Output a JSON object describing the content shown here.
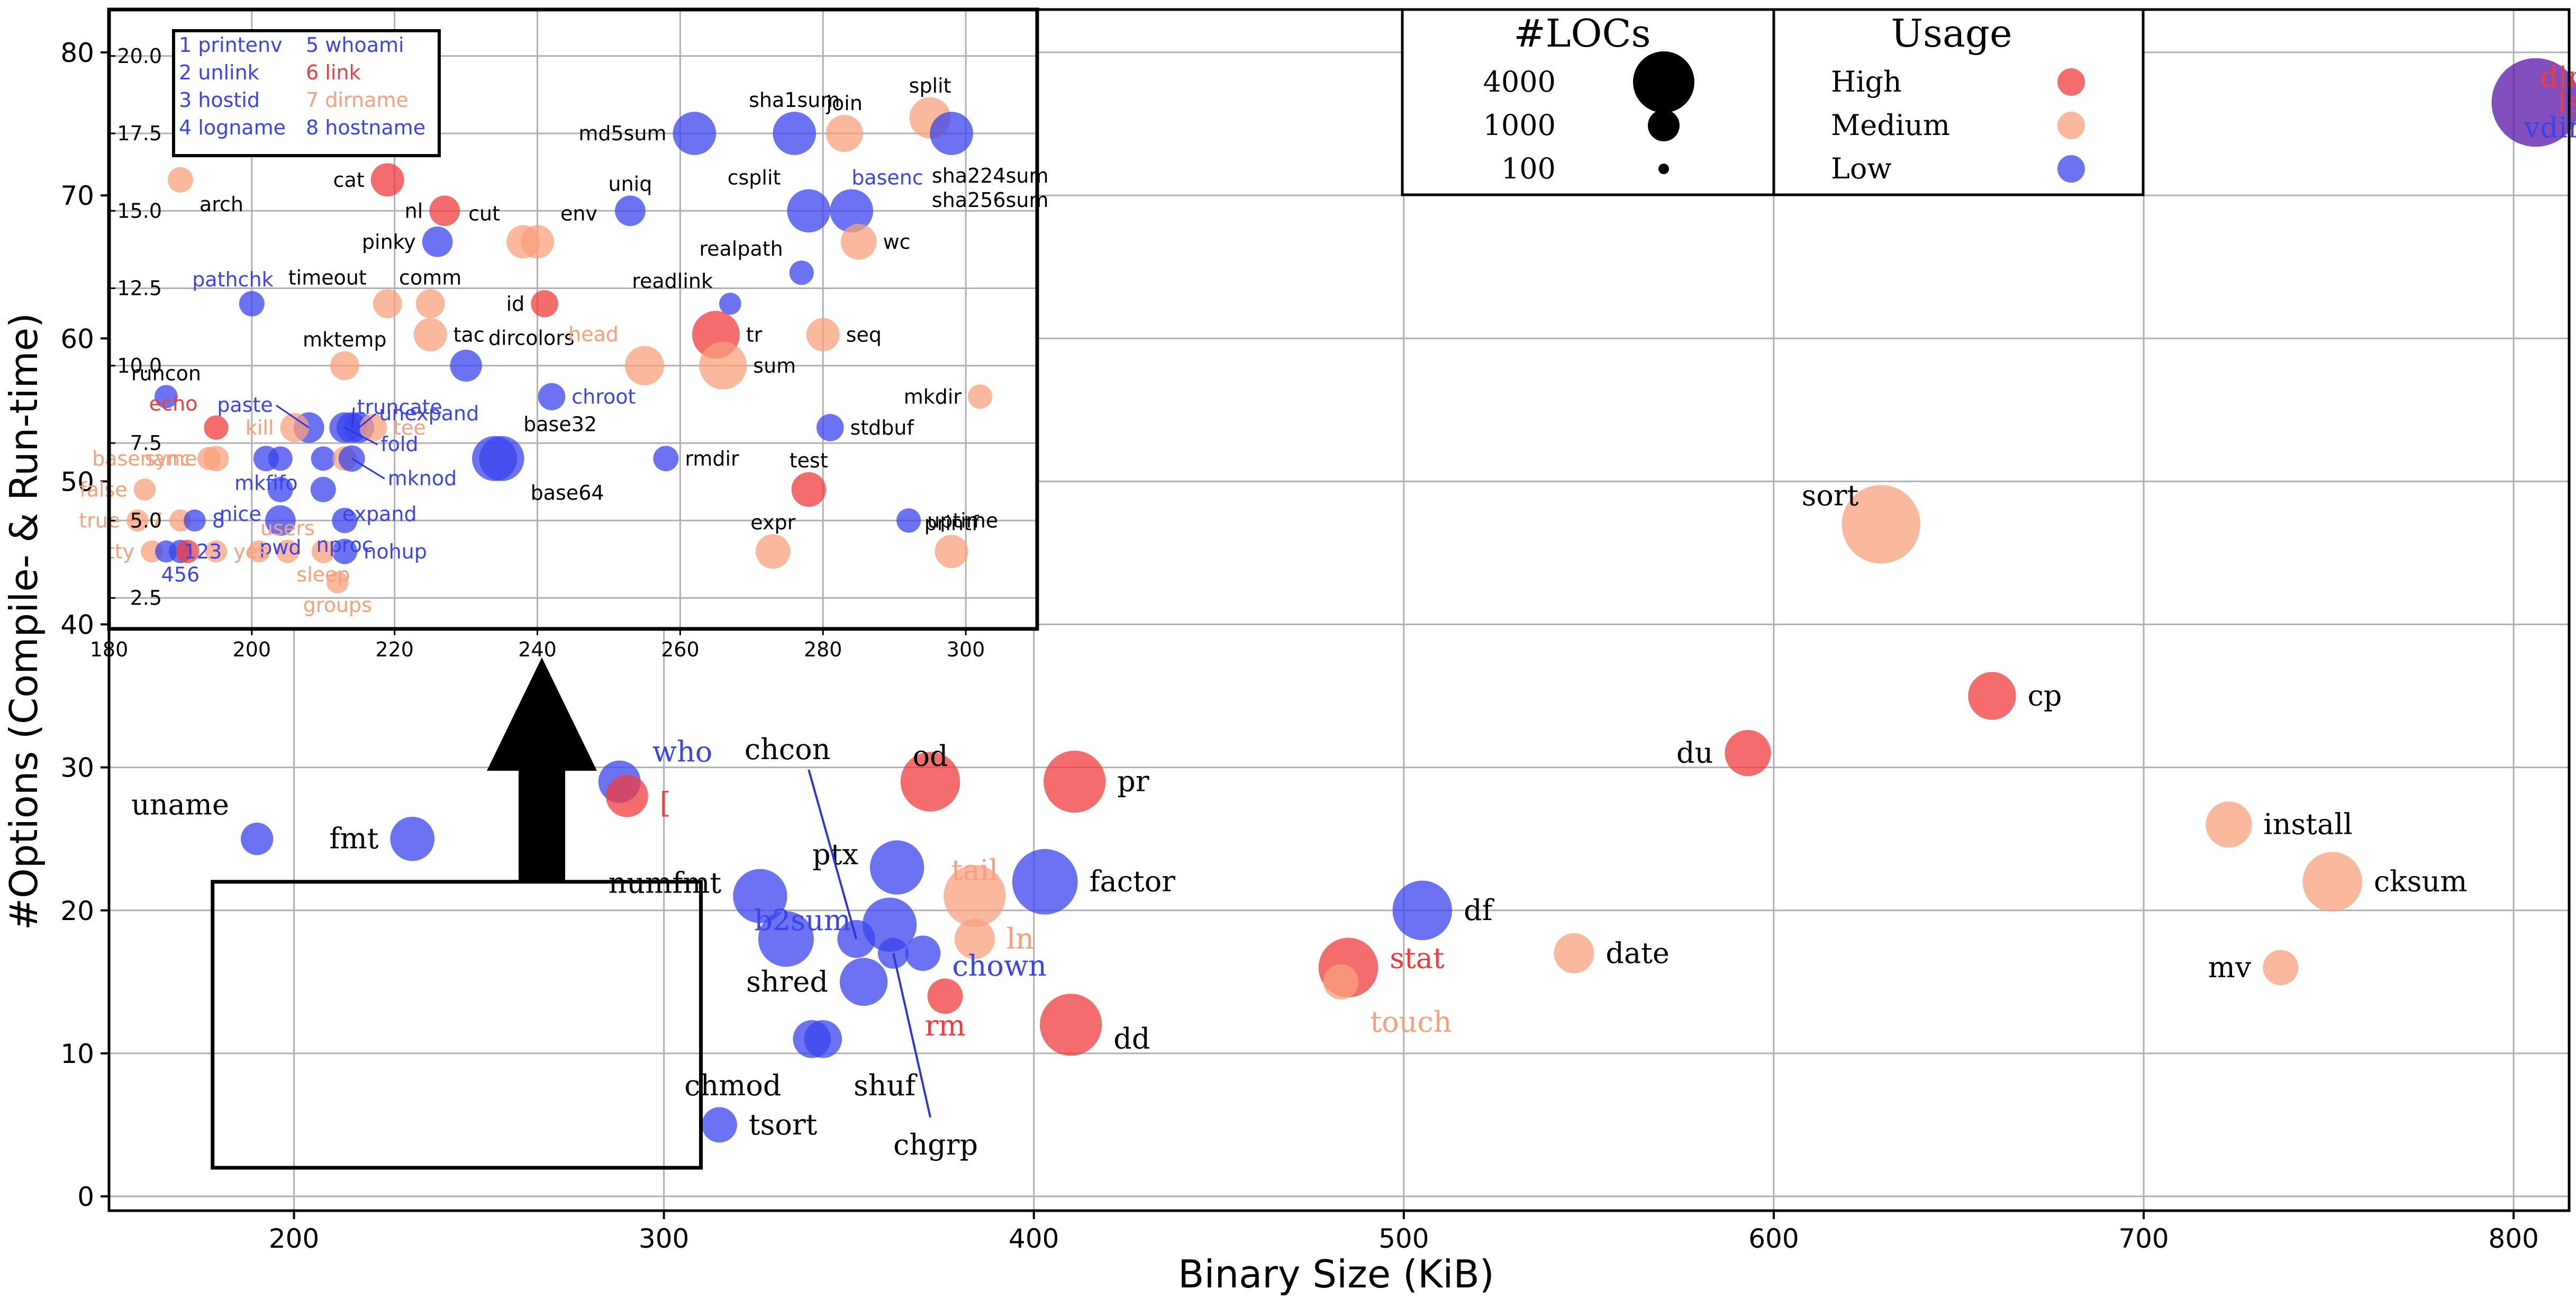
{
  "colors": {
    "High": "#f03c3c",
    "Medium": "#f8a07c",
    "Low": "#3a44ee",
    "Mixed": "#5a14a8",
    "grid": "#b0b0b0"
  },
  "chart_data": {
    "type": "scatter",
    "xlabel": "Binary Size (KiB)",
    "ylabel": "#Options (Compile- & Run-time)",
    "xlim": [
      150,
      815
    ],
    "ylim": [
      -1,
      83
    ],
    "xticks": [
      200,
      300,
      400,
      500,
      600,
      700,
      800
    ],
    "yticks": [
      0,
      10,
      20,
      30,
      40,
      50,
      60,
      70,
      80
    ],
    "grid": true,
    "legend_loc": "upper-center",
    "legend": {
      "size_title": "#LOCs",
      "sizes": [
        {
          "label": "4000",
          "loc": 4000
        },
        {
          "label": "1000",
          "loc": 1000
        },
        {
          "label": "100",
          "loc": 100
        }
      ],
      "usage_title": "Usage",
      "usage": [
        {
          "label": "High",
          "usage": "High"
        },
        {
          "label": "Medium",
          "usage": "Medium"
        },
        {
          "label": "Low",
          "usage": "Low"
        }
      ]
    },
    "points": [
      {
        "name": "dir\nls\nvdir",
        "x": 806,
        "y": 76.5,
        "loc": 4800,
        "usage": "Mixed",
        "label_colors": [
          "High",
          "High",
          "Low"
        ]
      },
      {
        "name": "sort",
        "x": 629,
        "y": 47,
        "loc": 3600,
        "usage": "Medium"
      },
      {
        "name": "cp",
        "x": 659,
        "y": 35,
        "loc": 1000,
        "usage": "High"
      },
      {
        "name": "du",
        "x": 593,
        "y": 31,
        "loc": 900,
        "usage": "High"
      },
      {
        "name": "install",
        "x": 723,
        "y": 26,
        "loc": 900,
        "usage": "Medium"
      },
      {
        "name": "cksum",
        "x": 751,
        "y": 22,
        "loc": 1800,
        "usage": "Medium"
      },
      {
        "name": "mv",
        "x": 737,
        "y": 16,
        "loc": 400,
        "usage": "Medium"
      },
      {
        "name": "date",
        "x": 546,
        "y": 17,
        "loc": 600,
        "usage": "Medium"
      },
      {
        "name": "df",
        "x": 505,
        "y": 20,
        "loc": 1800,
        "usage": "Low"
      },
      {
        "name": "stat",
        "x": 485,
        "y": 16,
        "loc": 1800,
        "usage": "High",
        "label_colored": true
      },
      {
        "name": "touch",
        "x": 483,
        "y": 15,
        "loc": 400,
        "usage": "Medium",
        "label_colored": true
      },
      {
        "name": "pr",
        "x": 411,
        "y": 29,
        "loc": 2000,
        "usage": "High"
      },
      {
        "name": "factor",
        "x": 403,
        "y": 22,
        "loc": 2300,
        "usage": "Low"
      },
      {
        "name": "dd",
        "x": 410,
        "y": 12,
        "loc": 2000,
        "usage": "High"
      },
      {
        "name": "od",
        "x": 372,
        "y": 29,
        "loc": 1800,
        "usage": "High"
      },
      {
        "name": "tail",
        "x": 384,
        "y": 21,
        "loc": 2000,
        "usage": "Medium",
        "label_colored": true
      },
      {
        "name": "ln",
        "x": 384,
        "y": 18,
        "loc": 600,
        "usage": "Medium",
        "label_colored": true
      },
      {
        "name": "ptx",
        "x": 363,
        "y": 23,
        "loc": 1400,
        "usage": "Low"
      },
      {
        "name": "b2sum",
        "x": 361,
        "y": 19,
        "loc": 1400,
        "usage": "Low",
        "label_colored": true
      },
      {
        "name": "chown",
        "x": 370,
        "y": 17,
        "loc": 400,
        "usage": "Low",
        "label_colored": true
      },
      {
        "name": "rm",
        "x": 376,
        "y": 14,
        "loc": 400,
        "usage": "High",
        "label_colored": true
      },
      {
        "name": "chcon",
        "x": 352,
        "y": 18,
        "loc": 500,
        "usage": "Low"
      },
      {
        "name": "chgrp",
        "x": 362,
        "y": 17,
        "loc": 250,
        "usage": "Low"
      },
      {
        "name": "shred",
        "x": 354,
        "y": 15,
        "loc": 1000,
        "usage": "Low"
      },
      {
        "name": "chmod",
        "x": 340,
        "y": 11,
        "loc": 500,
        "usage": "Low"
      },
      {
        "name": "shuf",
        "x": 343,
        "y": 11,
        "loc": 500,
        "usage": "Low"
      },
      {
        "name": "numfmt",
        "x": 326,
        "y": 21,
        "loc": 1400,
        "usage": "Low"
      },
      {
        "name": "",
        "x": 333,
        "y": 18,
        "loc": 1500,
        "usage": "Low"
      },
      {
        "name": "tsort",
        "x": 315,
        "y": 5,
        "loc": 400,
        "usage": "Low"
      },
      {
        "name": "who",
        "x": 288,
        "y": 29,
        "loc": 700,
        "usage": "Low",
        "label_colored": true
      },
      {
        "name": "[",
        "x": 290,
        "y": 28,
        "loc": 700,
        "usage": "High",
        "label_colored": true
      },
      {
        "name": "uname",
        "x": 190,
        "y": 25,
        "loc": 300,
        "usage": "Low"
      },
      {
        "name": "fmt",
        "x": 232,
        "y": 25,
        "loc": 800,
        "usage": "Low"
      }
    ],
    "zoom_region": {
      "x": [
        178,
        310
      ],
      "y": [
        2,
        22
      ]
    },
    "inset": {
      "xlim": [
        180,
        310
      ],
      "ylim": [
        1.5,
        21.5
      ],
      "xticks": [
        180,
        200,
        220,
        240,
        260,
        280,
        300
      ],
      "yticks": [
        "2.5",
        "5.0",
        "7.5",
        "10.0",
        "12.5",
        "15.0",
        "17.5",
        "20.0"
      ],
      "key": [
        {
          "n": "1",
          "name": "printenv",
          "usage": "Low"
        },
        {
          "n": "2",
          "name": "unlink",
          "usage": "Low"
        },
        {
          "n": "3",
          "name": "hostid",
          "usage": "Low"
        },
        {
          "n": "4",
          "name": "logname",
          "usage": "Low"
        },
        {
          "n": "5",
          "name": "whoami",
          "usage": "Low"
        },
        {
          "n": "6",
          "name": "link",
          "usage": "High"
        },
        {
          "n": "7",
          "name": "dirname",
          "usage": "Medium"
        },
        {
          "n": "8",
          "name": "hostname",
          "usage": "Low"
        }
      ],
      "points": [
        {
          "name": "split",
          "x": 295,
          "y": 18,
          "loc": 1600,
          "usage": "Medium"
        },
        {
          "name": "join",
          "x": 283,
          "y": 17.5,
          "loc": 1200,
          "usage": "Medium"
        },
        {
          "name": "md5sum",
          "x": 262,
          "y": 17.5,
          "loc": 1800,
          "usage": "Low"
        },
        {
          "name": "sha1sum",
          "x": 276,
          "y": 17.5,
          "loc": 1800,
          "usage": "Low"
        },
        {
          "name": "sha224sum\nsha256sum",
          "x": 298,
          "y": 17.5,
          "loc": 1800,
          "usage": "Low"
        },
        {
          "name": "csplit",
          "x": 278,
          "y": 15,
          "loc": 1800,
          "usage": "Low"
        },
        {
          "name": "basenc",
          "x": 284,
          "y": 15,
          "loc": 1800,
          "usage": "Low",
          "label_colored": true
        },
        {
          "name": "wc",
          "x": 285,
          "y": 14,
          "loc": 1100,
          "usage": "Medium"
        },
        {
          "name": "uniq",
          "x": 253,
          "y": 15,
          "loc": 700,
          "usage": "Low"
        },
        {
          "name": "arch",
          "x": 190,
          "y": 16,
          "loc": 400,
          "usage": "Medium"
        },
        {
          "name": "cat",
          "x": 219,
          "y": 16,
          "loc": 900,
          "usage": "High"
        },
        {
          "name": "nl",
          "x": 227,
          "y": 15,
          "loc": 700,
          "usage": "High"
        },
        {
          "name": "pinky",
          "x": 226,
          "y": 14,
          "loc": 700,
          "usage": "Low"
        },
        {
          "name": "cut",
          "x": 238,
          "y": 14,
          "loc": 900,
          "usage": "Medium"
        },
        {
          "name": "env",
          "x": 240,
          "y": 14,
          "loc": 900,
          "usage": "Medium"
        },
        {
          "name": "realpath",
          "x": 277,
          "y": 13,
          "loc": 350,
          "usage": "Low"
        },
        {
          "name": "pathchk",
          "x": 200,
          "y": 12,
          "loc": 400,
          "usage": "Low",
          "label_colored": true
        },
        {
          "name": "timeout",
          "x": 219,
          "y": 12,
          "loc": 600,
          "usage": "Medium"
        },
        {
          "name": "comm",
          "x": 225,
          "y": 12,
          "loc": 600,
          "usage": "Medium"
        },
        {
          "name": "id",
          "x": 241,
          "y": 12,
          "loc": 500,
          "usage": "High"
        },
        {
          "name": "readlink",
          "x": 267,
          "y": 12,
          "loc": 250,
          "usage": "Low"
        },
        {
          "name": "tr",
          "x": 265,
          "y": 11,
          "loc": 2300,
          "usage": "High"
        },
        {
          "name": "seq",
          "x": 280,
          "y": 11,
          "loc": 900,
          "usage": "Medium"
        },
        {
          "name": "tac",
          "x": 225,
          "y": 11,
          "loc": 900,
          "usage": "Medium"
        },
        {
          "name": "mktemp",
          "x": 213,
          "y": 10,
          "loc": 600,
          "usage": "Medium"
        },
        {
          "name": "dircolors",
          "x": 230,
          "y": 10,
          "loc": 800,
          "usage": "Low"
        },
        {
          "name": "head",
          "x": 255,
          "y": 10,
          "loc": 1400,
          "usage": "Medium",
          "label_colored": true
        },
        {
          "name": "sum",
          "x": 266,
          "y": 10,
          "loc": 2300,
          "usage": "Medium"
        },
        {
          "name": "runcon",
          "x": 188,
          "y": 9,
          "loc": 300,
          "usage": "Low"
        },
        {
          "name": "chroot",
          "x": 242,
          "y": 9,
          "loc": 500,
          "usage": "Low",
          "label_colored": true
        },
        {
          "name": "mkdir",
          "x": 302,
          "y": 9,
          "loc": 350,
          "usage": "Medium"
        },
        {
          "name": "echo",
          "x": 195,
          "y": 8,
          "loc": 350,
          "usage": "High",
          "label_colored": true
        },
        {
          "name": "stdbuf",
          "x": 281,
          "y": 8,
          "loc": 500,
          "usage": "Low"
        },
        {
          "name": "paste",
          "x": 208,
          "y": 8,
          "loc": 700,
          "usage": "Low",
          "label_colored": true,
          "leader": [
            -62,
            -42
          ]
        },
        {
          "name": "truncate",
          "x": 214,
          "y": 8,
          "loc": 700,
          "usage": "Low",
          "label_colored": true,
          "leader": [
            4,
            -38
          ]
        },
        {
          "name": "unexpand",
          "x": 215,
          "y": 8,
          "loc": 700,
          "usage": "Low",
          "label_colored": true,
          "leader": [
            32,
            -26
          ]
        },
        {
          "name": "fold",
          "x": 213,
          "y": 8,
          "loc": 700,
          "usage": "Low",
          "label_colored": true,
          "leader": [
            62,
            32
          ]
        },
        {
          "name": "kill",
          "x": 206,
          "y": 8,
          "loc": 600,
          "usage": "Medium",
          "label_colored": true
        },
        {
          "name": "tee",
          "x": 217,
          "y": 8,
          "loc": 500,
          "usage": "Medium",
          "label_colored": true
        },
        {
          "name": "basename",
          "x": 195,
          "y": 7,
          "loc": 400,
          "usage": "Medium",
          "label_colored": true
        },
        {
          "name": "mkfifo",
          "x": 202,
          "y": 7,
          "loc": 400,
          "usage": "Low",
          "label_colored": true
        },
        {
          "name": "",
          "x": 204,
          "y": 7,
          "loc": 350,
          "usage": "Low"
        },
        {
          "name": "",
          "x": 210,
          "y": 7,
          "loc": 350,
          "usage": "Low"
        },
        {
          "name": "",
          "x": 213,
          "y": 7,
          "loc": 350,
          "usage": "Medium"
        },
        {
          "name": "mknod",
          "x": 214,
          "y": 7,
          "loc": 450,
          "usage": "Low",
          "label_colored": true,
          "leader": [
            62,
            38
          ]
        },
        {
          "name": "base32",
          "x": 234,
          "y": 7,
          "loc": 2000,
          "usage": "Low"
        },
        {
          "name": "base64",
          "x": 235,
          "y": 7,
          "loc": 2000,
          "usage": "Low"
        },
        {
          "name": "rmdir",
          "x": 258,
          "y": 7,
          "loc": 400,
          "usage": "Low"
        },
        {
          "name": "test",
          "x": 278,
          "y": 6,
          "loc": 1000,
          "usage": "High"
        },
        {
          "name": "sync",
          "x": 194,
          "y": 7,
          "loc": 300,
          "usage": "Medium",
          "label_colored": true
        },
        {
          "name": "nice",
          "x": 204,
          "y": 6,
          "loc": 400,
          "usage": "Low",
          "label_colored": true
        },
        {
          "name": "expand",
          "x": 210,
          "y": 6,
          "loc": 400,
          "usage": "Low",
          "label_colored": true
        },
        {
          "name": "uptime",
          "x": 292,
          "y": 5,
          "loc": 350,
          "usage": "Low"
        },
        {
          "name": "false",
          "x": 185,
          "y": 6,
          "loc": 250,
          "usage": "Medium",
          "label_colored": true
        },
        {
          "name": "pwd",
          "x": 204,
          "y": 5,
          "loc": 700,
          "usage": "Low",
          "label_colored": true
        },
        {
          "name": "nproc",
          "x": 213,
          "y": 5,
          "loc": 400,
          "usage": "Low",
          "label_colored": true
        },
        {
          "name": "expr",
          "x": 273,
          "y": 4,
          "loc": 1000,
          "usage": "Medium"
        },
        {
          "name": "printf",
          "x": 298,
          "y": 4,
          "loc": 900,
          "usage": "Medium"
        },
        {
          "name": "true",
          "x": 184,
          "y": 5,
          "loc": 250,
          "usage": "Medium",
          "label_colored": true
        },
        {
          "name": "7",
          "x": 190,
          "y": 5,
          "loc": 250,
          "usage": "Medium",
          "label_colored": true
        },
        {
          "name": "8",
          "x": 192,
          "y": 5,
          "loc": 250,
          "usage": "Low",
          "label_colored": true
        },
        {
          "name": "tty",
          "x": 186,
          "y": 4,
          "loc": 250,
          "usage": "Medium",
          "label_colored": true
        },
        {
          "name": "123",
          "x": 188,
          "y": 4,
          "loc": 250,
          "usage": "Low",
          "label_colored": true
        },
        {
          "name": "nohup",
          "x": 213,
          "y": 4,
          "loc": 400,
          "usage": "Low",
          "label_colored": true
        },
        {
          "name": "456",
          "x": 190,
          "y": 4,
          "loc": 300,
          "usage": "Low",
          "label_colored": true
        },
        {
          "name": "",
          "x": 191,
          "y": 4,
          "loc": 300,
          "usage": "High"
        },
        {
          "name": "yes",
          "x": 195,
          "y": 4,
          "loc": 250,
          "usage": "Medium",
          "label_colored": true
        },
        {
          "name": "users",
          "x": 205,
          "y": 4,
          "loc": 300,
          "usage": "Medium",
          "label_colored": true
        },
        {
          "name": "",
          "x": 201,
          "y": 4,
          "loc": 250,
          "usage": "Medium"
        },
        {
          "name": "sleep",
          "x": 210,
          "y": 4,
          "loc": 300,
          "usage": "Medium",
          "label_colored": true
        },
        {
          "name": "groups",
          "x": 212,
          "y": 3,
          "loc": 250,
          "usage": "Medium",
          "label_colored": true
        }
      ]
    }
  }
}
